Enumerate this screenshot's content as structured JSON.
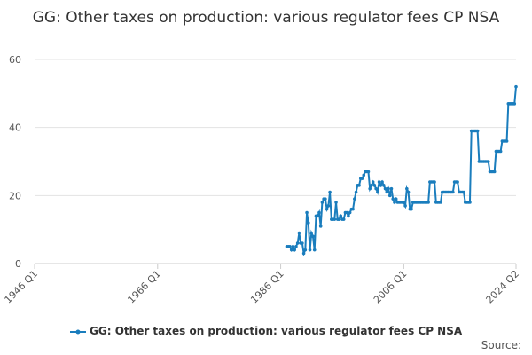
{
  "chart_data": {
    "type": "line",
    "title": "GG: Other taxes on production: various regulator fees CP NSA",
    "source": "Source:",
    "xlim": [
      "1946 Q1",
      "2024 Q2"
    ],
    "xticks": [
      "1946 Q1",
      "1966 Q1",
      "1986 Q1",
      "2006 Q1",
      "2024 Q2"
    ],
    "ylim": [
      0,
      60
    ],
    "yticks": [
      0,
      20,
      40,
      60
    ],
    "grid": true,
    "x": [
      "1987 Q1",
      "1987 Q2",
      "1987 Q3",
      "1987 Q4",
      "1988 Q1",
      "1988 Q2",
      "1988 Q3",
      "1988 Q4",
      "1989 Q1",
      "1989 Q2",
      "1989 Q3",
      "1989 Q4",
      "1990 Q1",
      "1990 Q2",
      "1990 Q3",
      "1990 Q4",
      "1991 Q1",
      "1991 Q2",
      "1991 Q3",
      "1991 Q4",
      "1992 Q1",
      "1992 Q2",
      "1992 Q3",
      "1992 Q4",
      "1993 Q1",
      "1993 Q2",
      "1993 Q3",
      "1993 Q4",
      "1994 Q1",
      "1994 Q2",
      "1994 Q3",
      "1994 Q4",
      "1995 Q1",
      "1995 Q2",
      "1995 Q3",
      "1995 Q4",
      "1996 Q1",
      "1996 Q2",
      "1996 Q3",
      "1996 Q4",
      "1997 Q1",
      "1997 Q2",
      "1997 Q3",
      "1997 Q4",
      "1998 Q1",
      "1998 Q2",
      "1998 Q3",
      "1998 Q4",
      "1999 Q1",
      "1999 Q2",
      "1999 Q3",
      "1999 Q4",
      "2000 Q1",
      "2000 Q2",
      "2000 Q3",
      "2000 Q4",
      "2001 Q1",
      "2001 Q2",
      "2001 Q3",
      "2001 Q4",
      "2002 Q1",
      "2002 Q2",
      "2002 Q3",
      "2002 Q4",
      "2003 Q1",
      "2003 Q2",
      "2003 Q3",
      "2003 Q4",
      "2004 Q1",
      "2004 Q2",
      "2004 Q3",
      "2004 Q4",
      "2005 Q1",
      "2005 Q2",
      "2005 Q3",
      "2005 Q4",
      "2006 Q1",
      "2006 Q2",
      "2006 Q3",
      "2006 Q4",
      "2007 Q1",
      "2007 Q2",
      "2007 Q3",
      "2007 Q4",
      "2008 Q1",
      "2008 Q2",
      "2008 Q3",
      "2008 Q4",
      "2009 Q1",
      "2009 Q2",
      "2009 Q3",
      "2009 Q4",
      "2010 Q1",
      "2010 Q2",
      "2010 Q3",
      "2010 Q4",
      "2011 Q1",
      "2011 Q2",
      "2011 Q3",
      "2011 Q4",
      "2012 Q1",
      "2012 Q2",
      "2012 Q3",
      "2012 Q4",
      "2013 Q1",
      "2013 Q2",
      "2013 Q3",
      "2013 Q4",
      "2014 Q1",
      "2014 Q2",
      "2014 Q3",
      "2014 Q4",
      "2015 Q1",
      "2015 Q2",
      "2015 Q3",
      "2015 Q4",
      "2016 Q1",
      "2016 Q2",
      "2016 Q3",
      "2016 Q4",
      "2017 Q1",
      "2017 Q2",
      "2017 Q3",
      "2017 Q4",
      "2018 Q1",
      "2018 Q2",
      "2018 Q3",
      "2018 Q4",
      "2019 Q1",
      "2019 Q2",
      "2019 Q3",
      "2019 Q4",
      "2020 Q1",
      "2020 Q2",
      "2020 Q3",
      "2020 Q4",
      "2021 Q1",
      "2021 Q2",
      "2021 Q3",
      "2021 Q4",
      "2022 Q1",
      "2022 Q2",
      "2022 Q3",
      "2022 Q4",
      "2023 Q1",
      "2023 Q2",
      "2023 Q3",
      "2023 Q4",
      "2024 Q1",
      "2024 Q2"
    ],
    "series": [
      {
        "name": "GG: Other taxes on production: various regulator fees CP NSA",
        "color": "#1a7dbd",
        "values": [
          5,
          5,
          5,
          4,
          5,
          4,
          5,
          6,
          9,
          6,
          6,
          3,
          4,
          15,
          12,
          4,
          9,
          8,
          4,
          14,
          14,
          15,
          11,
          18,
          19,
          19,
          16,
          17,
          21,
          13,
          13,
          13,
          18,
          13,
          13,
          14,
          13,
          13,
          15,
          15,
          14,
          15,
          16,
          16,
          19,
          21,
          23,
          23,
          25,
          25,
          26,
          27,
          27,
          27,
          22,
          23,
          24,
          23,
          22,
          21,
          24,
          23,
          24,
          23,
          22,
          21,
          22,
          20,
          22,
          19,
          18,
          19,
          18,
          18,
          18,
          18,
          18,
          17,
          22,
          21,
          16,
          16,
          18,
          18,
          18,
          18,
          18,
          18,
          18,
          18,
          18,
          18,
          18,
          24,
          24,
          24,
          24,
          18,
          18,
          18,
          18,
          21,
          21,
          21,
          21,
          21,
          21,
          21,
          21,
          24,
          24,
          24,
          21,
          21,
          21,
          21,
          18,
          18,
          18,
          18,
          39,
          39,
          39,
          39,
          39,
          30,
          30,
          30,
          30,
          30,
          30,
          30,
          27,
          27,
          27,
          27,
          33,
          33,
          33,
          33,
          36,
          36,
          36,
          36,
          47,
          47,
          47,
          47,
          47,
          52
        ]
      }
    ]
  }
}
